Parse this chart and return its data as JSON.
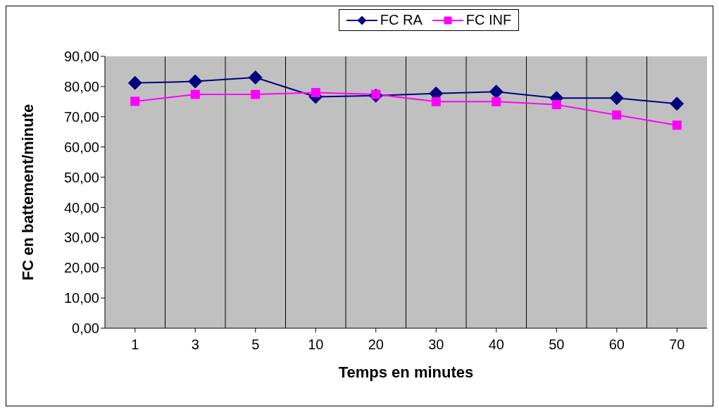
{
  "chart_data": {
    "type": "line",
    "xlabel": "Temps en minutes",
    "ylabel": "FC en battement/minute",
    "categories": [
      "1",
      "3",
      "5",
      "10",
      "20",
      "30",
      "40",
      "50",
      "60",
      "70"
    ],
    "series": [
      {
        "name": "FC RA",
        "color": "#000080",
        "marker": "diamond",
        "values": [
          81.2,
          81.7,
          83.0,
          76.6,
          77.0,
          77.7,
          78.3,
          76.2,
          76.2,
          74.3
        ]
      },
      {
        "name": "FC INF",
        "color": "#ff00ff",
        "marker": "square",
        "values": [
          75.1,
          77.4,
          77.4,
          78.0,
          77.4,
          75.0,
          75.0,
          74.0,
          70.6,
          67.2
        ]
      }
    ],
    "ylim": [
      0,
      90
    ],
    "yticks": [
      {
        "value": 0,
        "label": "0,00"
      },
      {
        "value": 10,
        "label": "10,00"
      },
      {
        "value": 20,
        "label": "20,00"
      },
      {
        "value": 30,
        "label": "30,00"
      },
      {
        "value": 40,
        "label": "40,00"
      },
      {
        "value": 50,
        "label": "50,00"
      },
      {
        "value": 60,
        "label": "60,00"
      },
      {
        "value": 70,
        "label": "70,00"
      },
      {
        "value": 80,
        "label": "80,00"
      },
      {
        "value": 90,
        "label": "90,00"
      }
    ],
    "grid": "x",
    "legend": "top",
    "line_style": "solid"
  }
}
